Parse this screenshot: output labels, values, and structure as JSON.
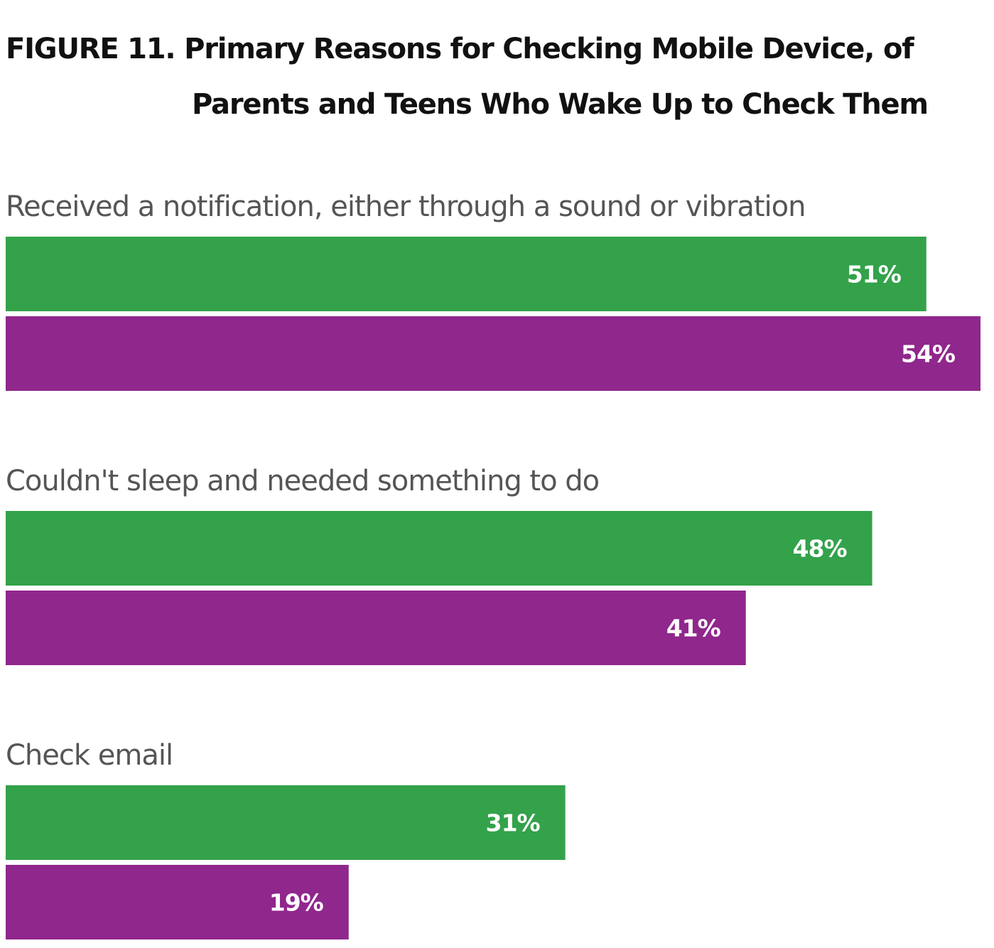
{
  "chart_data": {
    "type": "bar",
    "orientation": "horizontal",
    "title": "FIGURE 11. Primary Reasons for Checking Mobile Device, of Parents and Teens Who Wake Up to Check Them",
    "title_lines": [
      "FIGURE 11. Primary Reasons for Checking Mobile Device, of",
      "Parents and Teens Who Wake Up to Check Them"
    ],
    "xlabel": "",
    "ylabel": "",
    "xlim": [
      0,
      54
    ],
    "grid": false,
    "legend": null,
    "categories": [
      "Received a notification, either through a sound or vibration",
      "Couldn't sleep and needed something to do",
      "Check email"
    ],
    "series": [
      {
        "name": "Series 1 (green)",
        "color": "#33a24a",
        "values": [
          51,
          48,
          31
        ]
      },
      {
        "name": "Series 2 (purple)",
        "color": "#90278c",
        "values": [
          54,
          41,
          19
        ]
      }
    ],
    "value_suffix": "%"
  }
}
